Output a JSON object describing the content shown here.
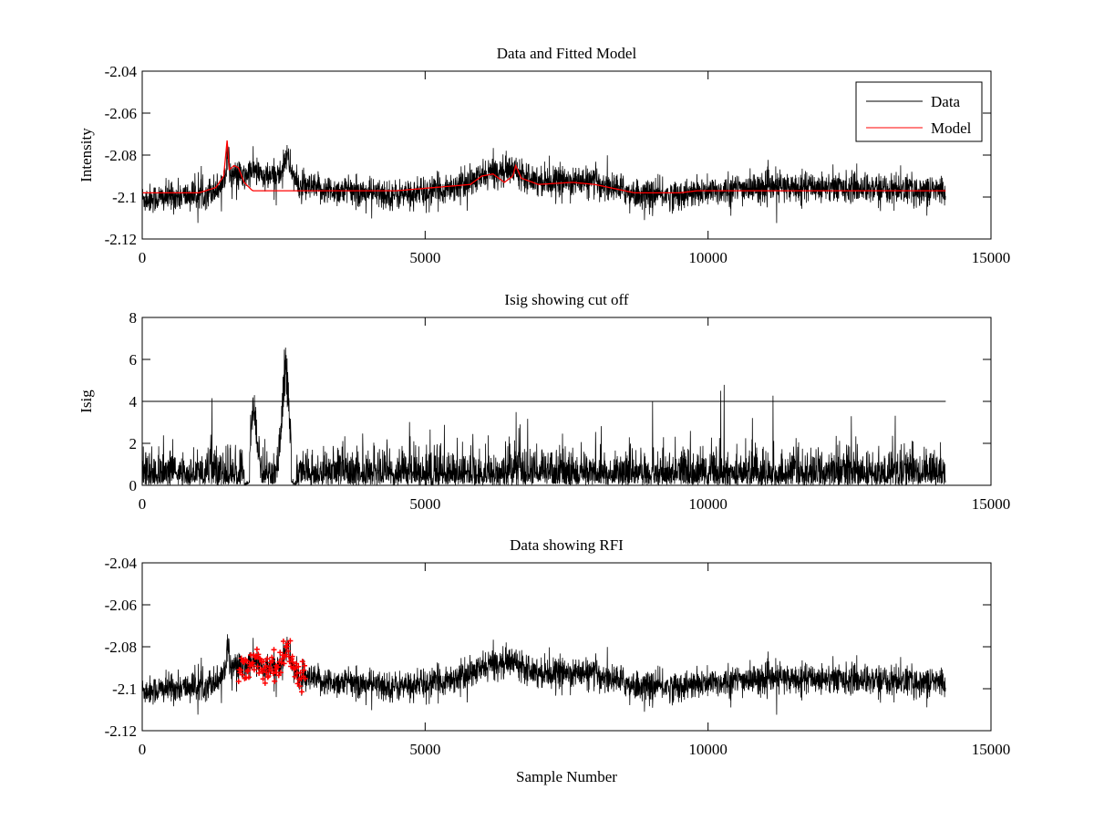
{
  "chart_data": [
    {
      "type": "line",
      "title": "Data and Fitted Model",
      "xlabel": "",
      "ylabel": "Intensity",
      "xlim": [
        0,
        15000
      ],
      "ylim": [
        -2.12,
        -2.04
      ],
      "xticks": [
        0,
        5000,
        10000,
        15000
      ],
      "xtick_labels": [
        "0",
        "5000",
        "10000",
        "15000"
      ],
      "yticks": [
        -2.12,
        -2.1,
        -2.08,
        -2.06,
        -2.04
      ],
      "ytick_labels": [
        "-2.12",
        "-2.1",
        "-2.08",
        "-2.06",
        "-2.04"
      ],
      "grid": false,
      "legend": {
        "placement": "top-right",
        "entries": [
          "Data",
          "Model"
        ]
      },
      "series": [
        {
          "name": "Data",
          "color": "#000000",
          "n_samples": 14200,
          "noise_sigma": 0.0035,
          "baseline": [
            [
              0,
              -2.101
            ],
            [
              1000,
              -2.099
            ],
            [
              1400,
              -2.095
            ],
            [
              1480,
              -2.086
            ],
            [
              1510,
              -2.079
            ],
            [
              1560,
              -2.089
            ],
            [
              1800,
              -2.091
            ],
            [
              1950,
              -2.087
            ],
            [
              2050,
              -2.089
            ],
            [
              2200,
              -2.091
            ],
            [
              2450,
              -2.089
            ],
            [
              2540,
              -2.08
            ],
            [
              2650,
              -2.088
            ],
            [
              2750,
              -2.095
            ],
            [
              3000,
              -2.096
            ],
            [
              4500,
              -2.099
            ],
            [
              5000,
              -2.098
            ],
            [
              5800,
              -2.093
            ],
            [
              6200,
              -2.088
            ],
            [
              6600,
              -2.087
            ],
            [
              7000,
              -2.092
            ],
            [
              8000,
              -2.093
            ],
            [
              8800,
              -2.099
            ],
            [
              9500,
              -2.099
            ],
            [
              10500,
              -2.096
            ],
            [
              12000,
              -2.095
            ],
            [
              14200,
              -2.097
            ]
          ]
        },
        {
          "name": "Model",
          "color": "#ff0000",
          "points": [
            [
              0,
              -2.098
            ],
            [
              1000,
              -2.098
            ],
            [
              1300,
              -2.0955
            ],
            [
              1440,
              -2.09
            ],
            [
              1500,
              -2.073
            ],
            [
              1540,
              -2.087
            ],
            [
              1620,
              -2.085
            ],
            [
              1700,
              -2.086
            ],
            [
              1800,
              -2.093
            ],
            [
              1950,
              -2.097
            ],
            [
              3000,
              -2.097
            ],
            [
              4500,
              -2.097
            ],
            [
              5800,
              -2.094
            ],
            [
              6000,
              -2.09
            ],
            [
              6200,
              -2.089
            ],
            [
              6400,
              -2.093
            ],
            [
              6550,
              -2.09
            ],
            [
              6600,
              -2.085
            ],
            [
              6700,
              -2.091
            ],
            [
              7000,
              -2.094
            ],
            [
              7600,
              -2.093
            ],
            [
              8000,
              -2.094
            ],
            [
              8700,
              -2.098
            ],
            [
              9500,
              -2.098
            ],
            [
              9800,
              -2.097
            ],
            [
              14200,
              -2.097
            ]
          ]
        }
      ]
    },
    {
      "type": "line",
      "title": "Isig showing cut off",
      "xlabel": "",
      "ylabel": "Isig",
      "xlim": [
        0,
        15000
      ],
      "ylim": [
        0,
        8
      ],
      "xticks": [
        0,
        5000,
        10000,
        15000
      ],
      "xtick_labels": [
        "0",
        "5000",
        "10000",
        "15000"
      ],
      "yticks": [
        0,
        2,
        4,
        6,
        8
      ],
      "ytick_labels": [
        "0",
        "2",
        "4",
        "6",
        "8"
      ],
      "grid": false,
      "cutoff": 4,
      "series": [
        {
          "name": "Isig",
          "color": "#000000",
          "n_samples": 14200,
          "peaks": [
            [
              1970,
              4.6,
              70
            ],
            [
              2530,
              6.7,
              90
            ]
          ],
          "dips": [
            [
              1850,
              100
            ],
            [
              2680,
              90
            ]
          ]
        },
        {
          "name": "Cut off",
          "color": "#000000",
          "points": [
            [
              0,
              4
            ],
            [
              14200,
              4
            ]
          ]
        }
      ]
    },
    {
      "type": "scatter",
      "title": "Data showing RFI",
      "xlabel": "Sample Number",
      "ylabel": "",
      "xlim": [
        0,
        15000
      ],
      "ylim": [
        -2.12,
        -2.04
      ],
      "xticks": [
        0,
        5000,
        10000,
        15000
      ],
      "xtick_labels": [
        "0",
        "5000",
        "10000",
        "15000"
      ],
      "yticks": [
        -2.12,
        -2.1,
        -2.08,
        -2.06,
        -2.04
      ],
      "ytick_labels": [
        "-2.12",
        "-2.1",
        "-2.08",
        "-2.06",
        "-2.04"
      ],
      "grid": false,
      "series": [
        {
          "name": "Data",
          "color": "#000000",
          "same_as": "Data and Fitted Model"
        },
        {
          "name": "RFI",
          "color": "#ff0000",
          "marker": "+",
          "flagged_range": [
            1700,
            2880
          ]
        }
      ]
    }
  ]
}
